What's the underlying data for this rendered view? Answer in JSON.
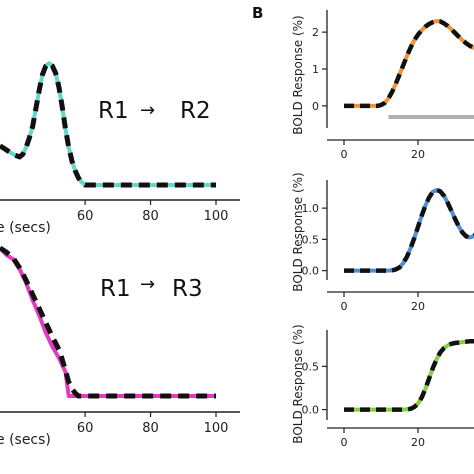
{
  "panel_label": "B",
  "colors": {
    "cyan": "#5fd8c8",
    "magenta": "#e33bbf",
    "orange": "#f2913a",
    "blue": "#4f8fd6",
    "green": "#7ed23f",
    "dash": "#111111",
    "axis": "#222222",
    "bar": "#b0b0b0"
  },
  "chart_data": [
    {
      "id": "left-top",
      "type": "line",
      "annotation": {
        "from": "R1",
        "to": "R2"
      },
      "xlabel": "e (secs)",
      "xticks": [
        "60",
        "80",
        "100"
      ],
      "xlim": [
        34,
        100
      ],
      "ylim": [
        0,
        1
      ],
      "series": [
        {
          "color_key": "cyan",
          "x": [
            34,
            36,
            38,
            40,
            41,
            42,
            43,
            44,
            45,
            46,
            47,
            48,
            49,
            50,
            51,
            52,
            53,
            54,
            55,
            56,
            57,
            58,
            59,
            60,
            61,
            62,
            64,
            70,
            80,
            90,
            100
          ],
          "y": [
            0.28,
            0.25,
            0.22,
            0.2,
            0.22,
            0.27,
            0.34,
            0.42,
            0.55,
            0.68,
            0.79,
            0.85,
            0.87,
            0.85,
            0.8,
            0.7,
            0.56,
            0.4,
            0.27,
            0.17,
            0.1,
            0.05,
            0.02,
            0.0,
            0.0,
            0.0,
            0.0,
            0.0,
            0.0,
            0.0,
            0.0
          ]
        }
      ],
      "dashed_fit": {
        "x": [
          34,
          36,
          38,
          40,
          41,
          42,
          43,
          44,
          45,
          46,
          47,
          48,
          49,
          50,
          51,
          52,
          53,
          54,
          55,
          56,
          57,
          58,
          59,
          60,
          61,
          62,
          64,
          70,
          80,
          90,
          100
        ],
        "y": [
          0.28,
          0.25,
          0.22,
          0.2,
          0.22,
          0.27,
          0.34,
          0.42,
          0.55,
          0.68,
          0.79,
          0.85,
          0.87,
          0.85,
          0.8,
          0.7,
          0.56,
          0.4,
          0.27,
          0.17,
          0.1,
          0.05,
          0.02,
          0.0,
          0.0,
          0.0,
          0.0,
          0.0,
          0.0,
          0.0,
          0.0
        ]
      }
    },
    {
      "id": "left-bottom",
      "type": "line",
      "annotation": {
        "from": "R1",
        "to": "R3"
      },
      "xlabel": "e (secs)",
      "xticks": [
        "60",
        "80",
        "100"
      ],
      "xlim": [
        34,
        100
      ],
      "ylim": [
        0,
        1
      ],
      "series": [
        {
          "color_key": "magenta",
          "x": [
            34,
            36,
            38,
            40,
            42,
            44,
            46,
            48,
            50,
            52,
            53,
            54,
            55,
            56,
            58,
            60,
            70,
            80,
            90,
            100
          ],
          "y": [
            1.05,
            1.0,
            0.97,
            0.9,
            0.8,
            0.68,
            0.57,
            0.45,
            0.35,
            0.27,
            0.22,
            0.17,
            0.0,
            0.0,
            0.0,
            0.0,
            0.0,
            0.0,
            0.0,
            0.0
          ]
        }
      ],
      "dashed_fit": {
        "x": [
          34,
          36,
          38,
          40,
          42,
          44,
          46,
          48,
          50,
          52,
          53,
          54,
          55,
          56,
          57,
          58,
          60,
          70,
          80,
          90,
          100
        ],
        "y": [
          1.05,
          1.02,
          0.98,
          0.91,
          0.82,
          0.72,
          0.62,
          0.52,
          0.42,
          0.33,
          0.26,
          0.18,
          0.1,
          0.05,
          0.02,
          0.0,
          0.0,
          0.0,
          0.0,
          0.0,
          0.0
        ]
      }
    },
    {
      "id": "right-1",
      "type": "line",
      "ylabel": "BOLD Response (%)",
      "xticks": [
        "0",
        "20"
      ],
      "yticks": [
        "0",
        "1",
        "2"
      ],
      "xlim": [
        -5,
        45
      ],
      "ylim": [
        -0.6,
        2.6
      ],
      "stimulus_bar": [
        12,
        45
      ],
      "series": [
        {
          "color_key": "orange",
          "x": [
            0,
            8,
            9,
            10,
            11,
            12,
            13,
            14,
            15,
            16,
            17,
            18,
            19,
            20,
            21,
            22,
            23,
            24,
            25,
            26,
            27,
            28,
            29,
            30,
            31,
            32,
            33,
            34,
            35,
            36,
            37,
            38,
            39,
            40,
            41,
            42,
            43,
            44,
            45
          ],
          "y": [
            0,
            0,
            0.0,
            0.02,
            0.08,
            0.2,
            0.38,
            0.6,
            0.85,
            1.1,
            1.35,
            1.58,
            1.78,
            1.93,
            2.05,
            2.15,
            2.22,
            2.27,
            2.3,
            2.29,
            2.24,
            2.17,
            2.08,
            1.98,
            1.88,
            1.78,
            1.7,
            1.63,
            1.58,
            1.55,
            1.53,
            1.52,
            1.52,
            1.53,
            1.55,
            1.57,
            1.59,
            1.61,
            1.63
          ]
        }
      ]
    },
    {
      "id": "right-2",
      "type": "line",
      "ylabel": "BOLD Response (%)",
      "xticks": [
        "0",
        "20"
      ],
      "yticks": [
        "0.0",
        "0.5",
        "1.0"
      ],
      "xlim": [
        -5,
        45
      ],
      "ylim": [
        -0.15,
        1.45
      ],
      "series": [
        {
          "color_key": "blue",
          "x": [
            0,
            12,
            13,
            14,
            15,
            16,
            17,
            18,
            19,
            20,
            21,
            22,
            23,
            24,
            25,
            26,
            27,
            28,
            29,
            30,
            31,
            32,
            33,
            34,
            35,
            36,
            37,
            38,
            39,
            40,
            41,
            42,
            43,
            44,
            45
          ],
          "y": [
            0,
            0,
            0.005,
            0.02,
            0.05,
            0.12,
            0.22,
            0.36,
            0.52,
            0.7,
            0.88,
            1.04,
            1.17,
            1.26,
            1.29,
            1.27,
            1.2,
            1.09,
            0.96,
            0.83,
            0.71,
            0.61,
            0.55,
            0.53,
            0.55,
            0.6,
            0.67,
            0.74,
            0.8,
            0.85,
            0.88,
            0.89,
            0.89,
            0.88,
            0.86
          ]
        }
      ]
    },
    {
      "id": "right-3",
      "type": "line",
      "ylabel": "BOLD Response (%)",
      "xticks": [
        "0",
        "20"
      ],
      "yticks": [
        "0.0",
        "0.5"
      ],
      "xlim": [
        -5,
        45
      ],
      "ylim": [
        -0.12,
        0.92
      ],
      "series": [
        {
          "color_key": "green",
          "x": [
            0,
            16,
            17,
            18,
            19,
            20,
            21,
            22,
            23,
            24,
            25,
            26,
            27,
            28,
            29,
            30,
            32,
            34,
            36,
            38,
            40,
            42,
            45
          ],
          "y": [
            0,
            0,
            0.003,
            0.01,
            0.03,
            0.07,
            0.14,
            0.24,
            0.36,
            0.48,
            0.58,
            0.66,
            0.71,
            0.74,
            0.76,
            0.77,
            0.78,
            0.79,
            0.79,
            0.79,
            0.79,
            0.79,
            0.79
          ]
        }
      ]
    }
  ]
}
